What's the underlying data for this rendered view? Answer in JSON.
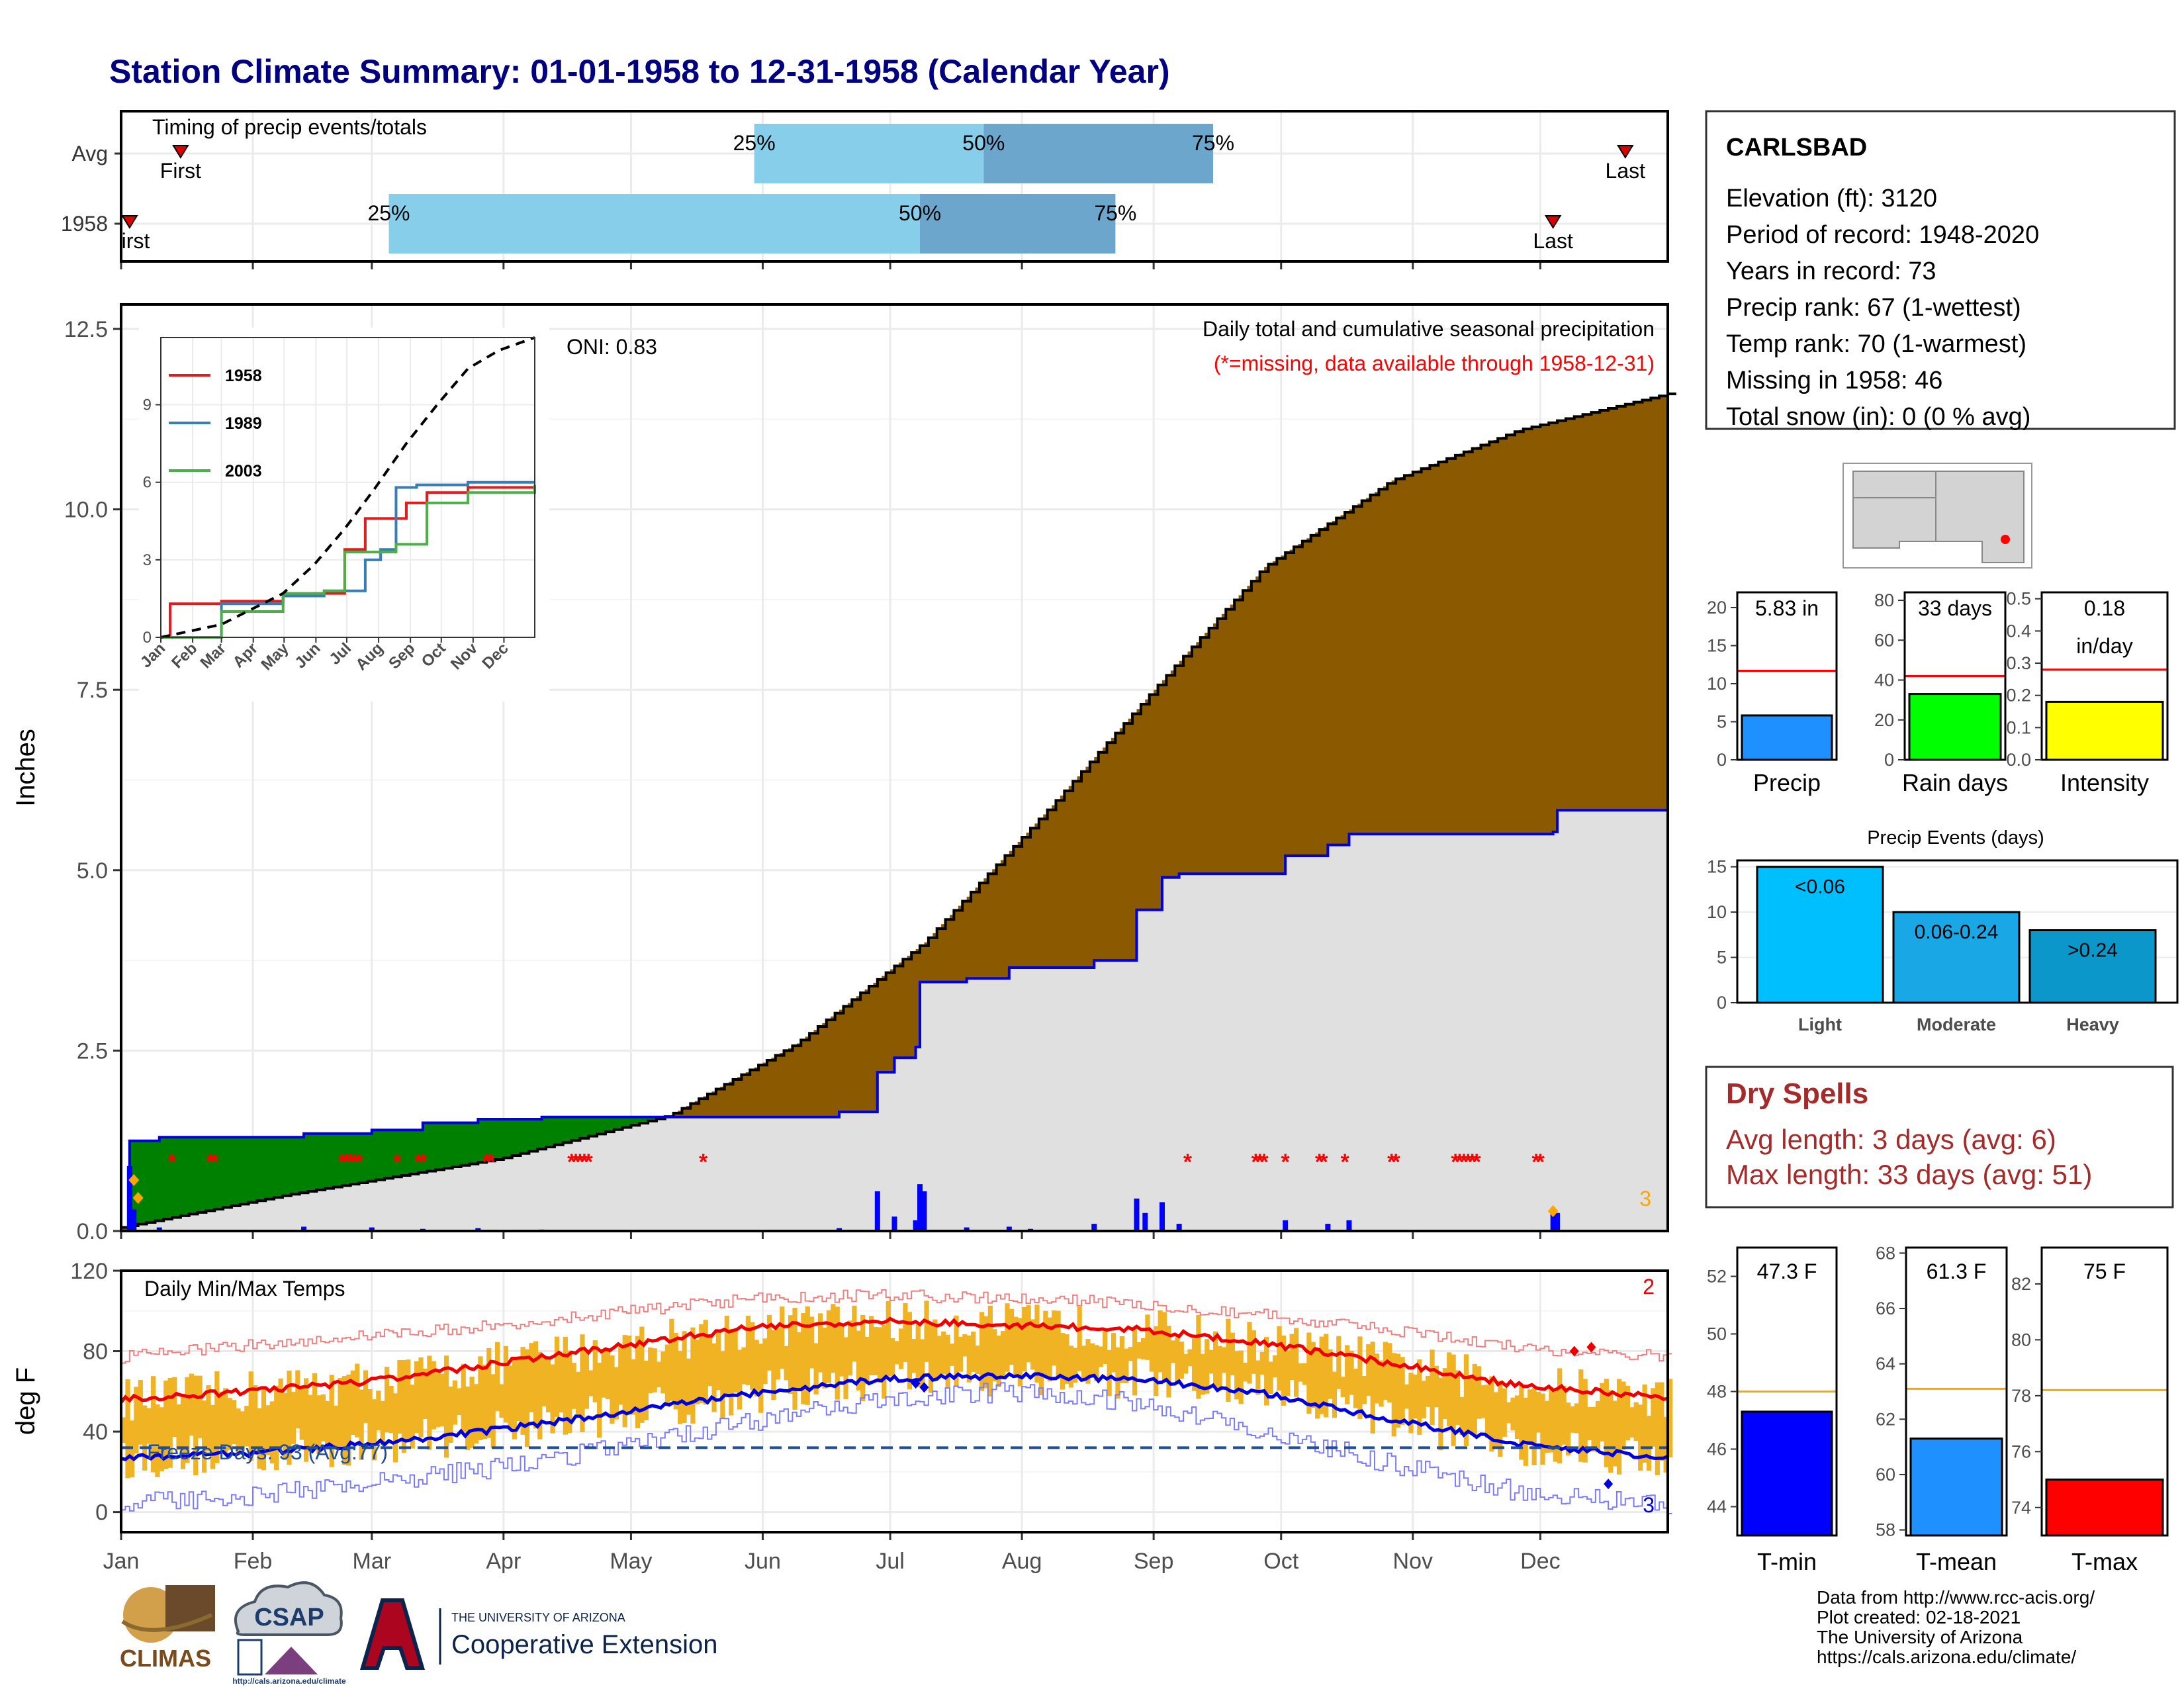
{
  "title": "Station Climate Summary: 01-01-1958 to 12-31-1958 (Calendar Year)",
  "timing": {
    "heading": "Timing of precip events/totals",
    "rows": [
      {
        "label": "Avg",
        "first_day": 15,
        "last_day": 355,
        "p25_day": 150,
        "p50_day": 204,
        "p75_day": 258,
        "first_label": "First",
        "last_label": "Last",
        "p25_label": "25%",
        "p50_label": "50%",
        "p75_label": "75%"
      },
      {
        "label": "1958",
        "first_day": 3,
        "last_day": 338,
        "p25_day": 64,
        "p50_day": 189,
        "p75_day": 235,
        "first_label": "irst",
        "last_label": "Last",
        "p25_label": "25%",
        "p50_label": "50%",
        "p75_label": "75%"
      }
    ]
  },
  "station": {
    "name": "CARLSBAD",
    "lines": [
      "Elevation (ft): 3120",
      "Period of record: 1948-2020",
      "Years in record: 73",
      "Precip rank: 67 (1-wettest)",
      "Temp rank: 70 (1-warmest)",
      "Missing in 1958: 46",
      "Total snow (in): 0 (0 % avg)"
    ]
  },
  "precip_panel": {
    "ylabel": "Inches",
    "caption": "Daily total and cumulative seasonal precipitation",
    "missing_note": "(*=missing, data available through 1958-12-31)",
    "oni": "ONI: 0.83",
    "corner_count": "3",
    "yticks": [
      "0.0",
      "2.5",
      "5.0",
      "7.5",
      "10.0",
      "12.5"
    ],
    "ylim": [
      0,
      12.5
    ],
    "colors": {
      "above": "#8B5A00",
      "below": "#008000",
      "fill_1958": "#e0e0e0",
      "line_1958": "#0000dd",
      "bars": "#0000ff",
      "missing": "#ff0000",
      "snow": "#ffa500"
    }
  },
  "inset": {
    "legend": [
      "1958",
      "1989",
      "2003"
    ],
    "colors": [
      "#e41a1c",
      "#377eb8",
      "#4daf4a"
    ],
    "yticks": [
      "0",
      "3",
      "6",
      "9"
    ],
    "xticks": [
      "Jan",
      "Feb",
      "Mar",
      "Apr",
      "May",
      "Jun",
      "Jul",
      "Aug",
      "Sep",
      "Oct",
      "Nov",
      "Dec"
    ]
  },
  "months": [
    "Jan",
    "Feb",
    "Mar",
    "Apr",
    "May",
    "Jun",
    "Jul",
    "Aug",
    "Sep",
    "Oct",
    "Nov",
    "Dec"
  ],
  "temp_panel": {
    "label": "Daily Min/Max Temps",
    "ylabel": "deg F",
    "yticks": [
      "0",
      "40",
      "80",
      "120"
    ],
    "ylim": [
      -10,
      120
    ],
    "freeze": "Freeze Days: 93 (Avg:77)",
    "count_top": "2",
    "count_bottom": "3"
  },
  "summary_bars": [
    {
      "label": "Precip",
      "value_text": "5.83 in",
      "value": 5.83,
      "avg": 11.7,
      "ylim": [
        0,
        22
      ],
      "yticks": [
        0,
        5,
        10,
        15,
        20
      ],
      "tick_labels": [
        "0",
        "5",
        "10",
        "15",
        "20"
      ],
      "color": "#1e90ff"
    },
    {
      "label": "Rain days",
      "value_text": "33 days",
      "value": 33,
      "avg": 42,
      "ylim": [
        0,
        84
      ],
      "yticks": [
        0,
        20,
        40,
        60,
        80
      ],
      "tick_labels": [
        "0",
        "20",
        "40",
        "60",
        "80"
      ],
      "color": "#00ff00"
    },
    {
      "label": "Intensity",
      "value_text": "0.18",
      "value_text2": "in/day",
      "value": 0.18,
      "avg": 0.28,
      "ylim": [
        0,
        0.52
      ],
      "yticks": [
        0,
        0.1,
        0.2,
        0.3,
        0.4,
        0.5
      ],
      "tick_labels": [
        "0.0",
        "0.1",
        "0.2",
        "0.3",
        "0.4",
        "0.5"
      ],
      "color": "#ffff00"
    }
  ],
  "precip_events": {
    "title": "Precip Events (days)",
    "categories": [
      "Light",
      "Moderate",
      "Heavy"
    ],
    "bin_labels": [
      "<0.06",
      "0.06-0.24",
      ">0.24"
    ],
    "values": [
      15,
      10,
      8
    ],
    "ylim": [
      0,
      16
    ],
    "yticks": [
      "0",
      "5",
      "10",
      "15"
    ],
    "colors": [
      "#00bfff",
      "#1aa7e6",
      "#0b97c9"
    ]
  },
  "dry_spells": {
    "title": "Dry Spells",
    "avg": "Avg length: 3 days (avg: 6)",
    "max": "Max length: 33 days (avg: 51)"
  },
  "temp_bars": [
    {
      "label": "T-min",
      "value_text": "47.3 F",
      "value": 47.3,
      "avg": 48.0,
      "ylim": [
        43,
        53
      ],
      "yticks": [
        44,
        46,
        48,
        50,
        52
      ],
      "tick_labels": [
        "44",
        "46",
        "48",
        "50",
        "52"
      ],
      "color": "#0000ff"
    },
    {
      "label": "T-mean",
      "value_text": "61.3 F",
      "value": 61.3,
      "avg": 63.1,
      "ylim": [
        57.8,
        68.2
      ],
      "yticks": [
        58,
        60,
        62,
        64,
        66,
        68
      ],
      "tick_labels": [
        "58",
        "60",
        "62",
        "64",
        "66",
        "68"
      ],
      "color": "#1e90ff"
    },
    {
      "label": "T-max",
      "value_text": "75 F",
      "value": 75,
      "avg": 78.2,
      "ylim": [
        73,
        83.3
      ],
      "yticks": [
        74,
        76,
        78,
        80,
        82
      ],
      "tick_labels": [
        "74",
        "76",
        "78",
        "80",
        "82"
      ],
      "color": "#ff0000"
    }
  ],
  "credits": [
    "Data from http://www.rcc-acis.org/",
    "Plot created: 02-18-2021",
    "The University of Arizona",
    "https://cals.arizona.edu/climate/"
  ],
  "logos": {
    "climas": "CLIMAS",
    "csap": "CSAP",
    "csap_url": "http://cals.arizona.edu/climate",
    "ua_small": "THE UNIVERSITY OF ARIZONA",
    "ua_big": "Cooperative Extension"
  },
  "chart_data": [
    {
      "type": "area",
      "title": "Daily total and cumulative seasonal precipitation",
      "ylabel": "Inches",
      "ylim": [
        0,
        12.5
      ],
      "x_units": "day of year",
      "series": [
        {
          "name": "",
          "x": [
            1,
            40,
            90,
            130,
            160,
            190,
            220,
            250,
            270,
            300,
            330,
            365
          ],
          "values": [
            0.05,
            0.5,
            1.0,
            1.6,
            2.6,
            4.0,
            5.9,
            7.9,
            9.2,
            10.4,
            11.1,
            11.6
          ]
        },
        {
          "name": "1958",
          "x": [
            1,
            3,
            10,
            44,
            60,
            72,
            85,
            100,
            120,
            170,
            179,
            183,
            188,
            189,
            200,
            210,
            230,
            240,
            246,
            250,
            275,
            285,
            290,
            338,
            339,
            365
          ],
          "values": [
            0,
            1.25,
            1.3,
            1.35,
            1.4,
            1.5,
            1.55,
            1.58,
            1.58,
            1.65,
            2.2,
            2.4,
            2.55,
            3.45,
            3.5,
            3.65,
            3.75,
            4.45,
            4.9,
            4.95,
            5.2,
            5.35,
            5.5,
            5.53,
            5.83,
            5.83
          ]
        }
      ]
    },
    {
      "type": "line",
      "title": "",
      "series": [
        {
          "name": "1958",
          "x": [
            1,
            10,
            60,
            120,
            150,
            180,
            200,
            240,
            260,
            300,
            365
          ],
          "values": [
            0,
            1.3,
            1.4,
            1.6,
            1.7,
            3.4,
            4.6,
            5.2,
            5.6,
            5.8,
            5.8
          ]
        },
        {
          "name": "1989",
          "x": [
            1,
            40,
            60,
            120,
            160,
            200,
            215,
            230,
            250,
            300,
            365
          ],
          "values": [
            0,
            0,
            1.3,
            1.6,
            1.8,
            3.0,
            3.4,
            5.8,
            5.9,
            6.0,
            6.0
          ]
        },
        {
          "name": "2003",
          "x": [
            1,
            60,
            120,
            160,
            180,
            230,
            260,
            300,
            365
          ],
          "values": [
            0,
            1.0,
            1.7,
            1.8,
            3.3,
            3.6,
            5.2,
            5.6,
            5.9
          ]
        },
        {
          "name": "",
          "x": [
            1,
            60,
            120,
            150,
            180,
            210,
            240,
            270,
            300,
            330,
            365
          ],
          "values": [
            0,
            0.5,
            1.7,
            2.8,
            4.2,
            5.8,
            7.5,
            9.0,
            10.4,
            11.1,
            11.6
          ]
        }
      ],
      "ylim": [
        0,
        11.6
      ],
      "yticks": [
        0,
        3,
        6,
        9
      ]
    },
    {
      "type": "line",
      "title": "Daily Min/Max Temps",
      "ylabel": "deg F",
      "ylim": [
        -10,
        120
      ],
      "series": [
        {
          "name": "",
          "x": [
            1,
            30,
            60,
            90,
            120,
            150,
            180,
            210,
            240,
            270,
            300,
            330,
            365
          ],
          "values": [
            56,
            60,
            65,
            74,
            83,
            92,
            95,
            93,
            91,
            84,
            74,
            63,
            57
          ]
        },
        {
          "name": "",
          "x": [
            1,
            30,
            60,
            90,
            120,
            150,
            180,
            210,
            240,
            270,
            300,
            330,
            365
          ],
          "values": [
            27,
            29,
            34,
            41,
            50,
            59,
            66,
            68,
            66,
            59,
            46,
            34,
            27
          ]
        },
        {
          "name": "",
          "x": [
            1,
            30,
            60,
            90,
            120,
            150,
            180,
            210,
            240,
            270,
            300,
            330,
            365
          ],
          "values": [
            77,
            83,
            88,
            93,
            100,
            106,
            108,
            106,
            104,
            98,
            90,
            82,
            77
          ]
        },
        {
          "name": "",
          "x": [
            1,
            30,
            60,
            90,
            120,
            150,
            180,
            210,
            240,
            270,
            300,
            330,
            365
          ],
          "values": [
            4,
            8,
            15,
            22,
            33,
            45,
            56,
            60,
            54,
            40,
            24,
            10,
            4
          ]
        }
      ],
      "freeze_line": 32
    },
    {
      "type": "bar",
      "title": "Precip Events (days)",
      "categories": [
        "Light",
        "Moderate",
        "Heavy"
      ],
      "values": [
        15,
        10,
        8
      ],
      "ylim": [
        0,
        16
      ]
    }
  ]
}
